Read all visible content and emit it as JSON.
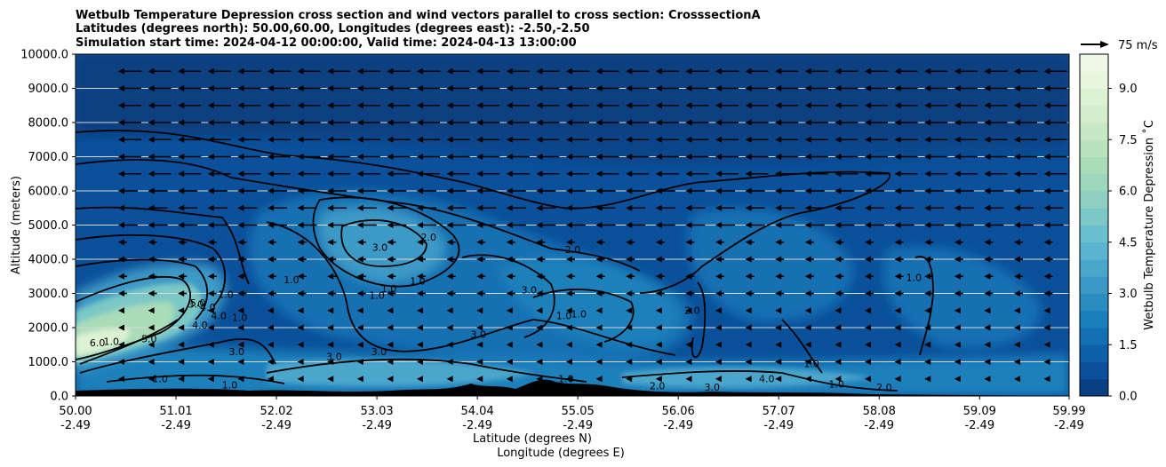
{
  "chart_data": {
    "type": "contour",
    "title_lines": [
      "Wetbulb Temperature Depression cross section and wind vectors parallel to cross section: CrosssectionA",
      "Latitudes (degrees north): 50.00,60.00, Longitudes (degrees east): -2.50,-2.50",
      "Simulation start time: 2024-04-12 00:00:00, Valid time: 2024-04-13 13:00:00"
    ],
    "ylabel": "Altitude (meters)",
    "xlabel_lat": "Latitude (degrees N)",
    "xlabel_lon": "Longitude (degrees E)",
    "ylim": [
      0,
      10000
    ],
    "y_ticks": [
      "0.0",
      "1000.0",
      "2000.0",
      "3000.0",
      "4000.0",
      "5000.0",
      "6000.0",
      "7000.0",
      "8000.0",
      "9000.0",
      "10000.0"
    ],
    "y_tick_values": [
      0,
      1000,
      2000,
      3000,
      4000,
      5000,
      6000,
      7000,
      8000,
      9000,
      10000
    ],
    "xlim": [
      50.0,
      59.99
    ],
    "x_tick_values": [
      50.0,
      51.01,
      52.02,
      53.03,
      54.04,
      55.05,
      56.06,
      57.07,
      58.08,
      59.09,
      59.99
    ],
    "x_ticks_lat": [
      "50.00",
      "51.01",
      "52.02",
      "53.03",
      "54.04",
      "55.05",
      "56.06",
      "57.07",
      "58.08",
      "59.09",
      "59.99"
    ],
    "x_ticks_lon": [
      "-2.49",
      "-2.49",
      "-2.49",
      "-2.49",
      "-2.49",
      "-2.49",
      "-2.49",
      "-2.49",
      "-2.49",
      "-2.49",
      "-2.49"
    ],
    "grid": "horizontal",
    "colorbar": {
      "label": "Wetbulb Temperature Depression ˚C",
      "range": [
        0.0,
        10.0
      ],
      "ticks": [
        "0.0",
        "1.5",
        "3.0",
        "4.5",
        "6.0",
        "7.5",
        "9.0"
      ],
      "tick_values": [
        0.0,
        1.5,
        3.0,
        4.5,
        6.0,
        7.5,
        9.0
      ],
      "levels": 20,
      "colors": [
        "#084081",
        "#0a509a",
        "#0d5fa7",
        "#1370b2",
        "#1a80bb",
        "#2b8cc0",
        "#3c99c6",
        "#4ba6cc",
        "#5ab3cf",
        "#6abecd",
        "#7bc8c7",
        "#8dcfc1",
        "#9cd6bc",
        "#aadcb8",
        "#b9e2bd",
        "#c7e8c4",
        "#d3edcb",
        "#ddf2d3",
        "#e7f6dd",
        "#f0f9e8"
      ]
    },
    "quiver_key": {
      "label": "75 m/s",
      "speed": 75
    },
    "wind_direction": "leftward (southward, parallel to cross section)",
    "contour_labels": [
      {
        "text": "3.0",
        "x": 53.06,
        "y": 4250
      },
      {
        "text": "2.0",
        "x": 53.55,
        "y": 4550
      },
      {
        "text": "2.0",
        "x": 55.0,
        "y": 4180
      },
      {
        "text": "1.0",
        "x": 53.15,
        "y": 3040
      },
      {
        "text": "1.0",
        "x": 52.17,
        "y": 3300
      },
      {
        "text": "1.0",
        "x": 53.44,
        "y": 3260
      },
      {
        "text": "1.0",
        "x": 53.03,
        "y": 2850
      },
      {
        "text": "3.0",
        "x": 54.56,
        "y": 3000
      },
      {
        "text": "1.0",
        "x": 54.91,
        "y": 2250
      },
      {
        "text": "1.0",
        "x": 55.06,
        "y": 2300
      },
      {
        "text": "2.0",
        "x": 56.2,
        "y": 2400
      },
      {
        "text": "1.0",
        "x": 58.43,
        "y": 3370
      },
      {
        "text": "1.0",
        "x": 51.51,
        "y": 2870
      },
      {
        "text": "1.0",
        "x": 51.65,
        "y": 2200
      },
      {
        "text": "3.0",
        "x": 51.62,
        "y": 1200
      },
      {
        "text": "4.0",
        "x": 51.44,
        "y": 2250
      },
      {
        "text": "4.0",
        "x": 51.33,
        "y": 2500
      },
      {
        "text": "5.0",
        "x": 51.23,
        "y": 2620
      },
      {
        "text": "3.0",
        "x": 51.21,
        "y": 2580
      },
      {
        "text": "6.0",
        "x": 50.22,
        "y": 1450
      },
      {
        "text": "1.0",
        "x": 50.36,
        "y": 1500
      },
      {
        "text": "5.0",
        "x": 50.74,
        "y": 1570
      },
      {
        "text": "4.0",
        "x": 51.25,
        "y": 1980
      },
      {
        "text": "3.0",
        "x": 52.6,
        "y": 1050
      },
      {
        "text": "3.0",
        "x": 53.05,
        "y": 1200
      },
      {
        "text": "3.0",
        "x": 54.05,
        "y": 1700
      },
      {
        "text": "1.0",
        "x": 54.93,
        "y": 400
      },
      {
        "text": "3.0",
        "x": 56.4,
        "y": 150
      },
      {
        "text": "2.0",
        "x": 55.85,
        "y": 200
      },
      {
        "text": "1.0",
        "x": 57.4,
        "y": 850
      },
      {
        "text": "1.0",
        "x": 57.65,
        "y": 250
      },
      {
        "text": "4.0",
        "x": 56.95,
        "y": 400
      },
      {
        "text": "2.0",
        "x": 58.13,
        "y": 150
      },
      {
        "text": "1.0",
        "x": 51.55,
        "y": 220
      },
      {
        "text": "1.0",
        "x": 50.85,
        "y": 400
      }
    ]
  }
}
